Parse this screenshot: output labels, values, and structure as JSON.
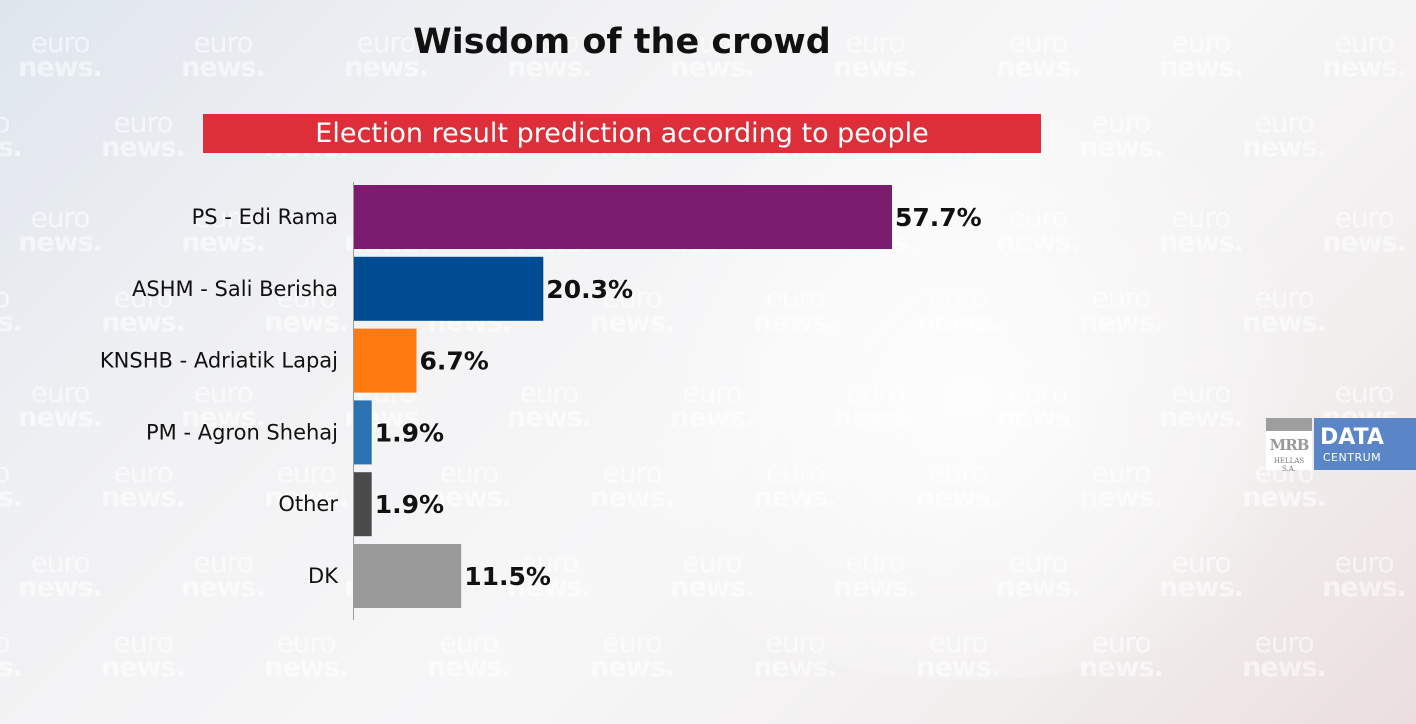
{
  "watermark": {
    "line1": "euro",
    "line2": "news."
  },
  "chart_data": {
    "type": "bar",
    "orientation": "horizontal",
    "title": "Wisdom of the crowd",
    "subtitle": "Election result prediction according to people",
    "categories": [
      "PS - Edi Rama",
      "ASHM - Sali Berisha",
      "KNSHB - Adriatik Lapaj",
      "PM - Agron Shehaj",
      "Other",
      "DK"
    ],
    "values": [
      57.7,
      20.3,
      6.7,
      1.9,
      1.9,
      11.5
    ],
    "value_labels": [
      "57.7%",
      "20.3%",
      "6.7%",
      "1.9%",
      "1.9%",
      "11.5%"
    ],
    "colors": [
      "#7b1c6e",
      "#004c93",
      "#ff7a10",
      "#2a73b3",
      "#4b4b4b",
      "#9a9a9a"
    ],
    "xlim": [
      0,
      100
    ],
    "grid": false,
    "legend": "none"
  },
  "logo": {
    "mrb": "MRB",
    "hellas": "HELLAS S.A.",
    "data": "DATA",
    "centrum": "CENTRUM"
  }
}
